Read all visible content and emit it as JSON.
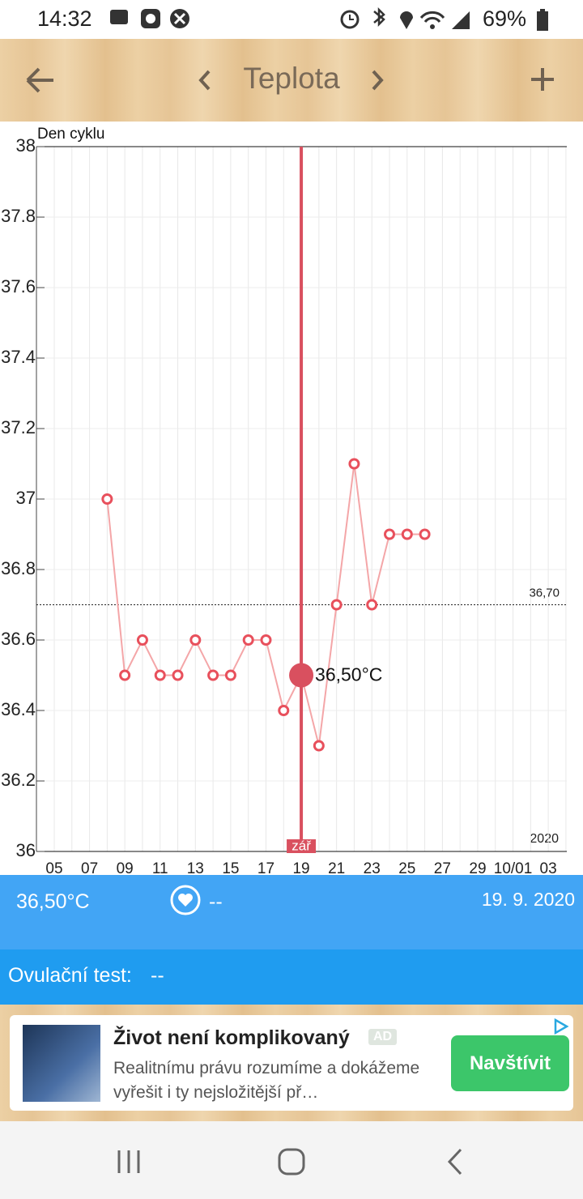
{
  "status_bar": {
    "time": "14:32",
    "battery": "69%"
  },
  "header": {
    "title": "Teplota"
  },
  "chart_data": {
    "type": "line",
    "y_label": "Den cyklu",
    "year_label": "2020",
    "categories": [
      "05",
      null,
      "07",
      null,
      "09",
      null,
      "11",
      null,
      "13",
      null,
      "15",
      null,
      "17",
      null,
      "19",
      null,
      "21",
      null,
      "23",
      null,
      "25",
      null,
      "27",
      null,
      "29",
      null,
      "10/01",
      null,
      "03"
    ],
    "values": [
      null,
      null,
      null,
      37.0,
      36.5,
      36.6,
      36.5,
      36.5,
      36.6,
      36.5,
      36.5,
      36.6,
      36.6,
      36.4,
      36.5,
      36.3,
      36.7,
      37.1,
      36.7,
      36.9,
      36.9,
      36.9,
      null,
      null,
      null,
      null,
      null,
      null,
      null
    ],
    "value_labels": [
      null,
      null,
      null,
      null,
      null,
      null,
      null,
      null,
      null,
      null,
      null,
      null,
      null,
      null,
      "36,50°C",
      null,
      null,
      null,
      null,
      null,
      null,
      null,
      null,
      null,
      null,
      null,
      null,
      null,
      null
    ],
    "month_labels": [
      null,
      null,
      null,
      null,
      null,
      null,
      null,
      null,
      null,
      null,
      null,
      null,
      null,
      null,
      "zář",
      null,
      null,
      null,
      null,
      null,
      null,
      null,
      null,
      null,
      null,
      null,
      null,
      null,
      null
    ],
    "color": "#e8505c",
    "line_color": "#f4a6a8",
    "ylim": [
      36,
      38
    ],
    "yticks": [
      36,
      36.2,
      36.4,
      36.6,
      36.8,
      37,
      37.2,
      37.4,
      37.6,
      37.8,
      38
    ],
    "grid": true,
    "reference_line": {
      "value": 36.7,
      "label": "36,70"
    }
  },
  "info": {
    "temperature": "36,50°C",
    "heart": "--",
    "date": "19. 9. 2020",
    "ovulation_label": "Ovulační test:",
    "ovulation_value": "--"
  },
  "ad": {
    "title": "Život není komplikovaný",
    "badge": "AD",
    "text": "Realitnímu právu rozumíme a dokážeme vyřešit i ty nejsložitější př…",
    "button": "Navštívit"
  }
}
